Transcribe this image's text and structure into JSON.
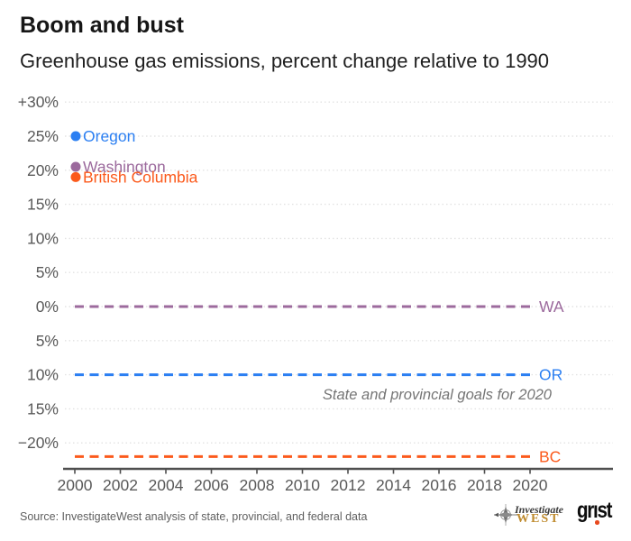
{
  "header": {
    "title": "Boom and bust",
    "subtitle": "Greenhouse gas emissions, percent change relative to 1990"
  },
  "colors": {
    "oregon": "#2b7ff2",
    "washington": "#9c6a9d",
    "british_columbia": "#fb5a1c",
    "grid": "#e3e3e3",
    "axis": "#4f4f4f",
    "tick_text": "#595959",
    "annotation": "#757575",
    "title_text": "#161616",
    "source_text": "#5f5f5f",
    "logo_gold": "#bf8b2e",
    "grist_red": "#e8491e"
  },
  "chart_data": {
    "type": "line",
    "title": "Boom and bust",
    "subtitle": "Greenhouse gas emissions, percent change relative to 1990",
    "unit": "percent change relative to 1990",
    "xlim": [
      2000,
      2020
    ],
    "ylim": [
      -24,
      32
    ],
    "grid": "horizontal dotted every 5%",
    "legend_position": "upper-left inside plot",
    "x_ticks": [
      2000,
      2002,
      2004,
      2006,
      2008,
      2010,
      2012,
      2014,
      2016,
      2018,
      2020
    ],
    "y_ticks": [
      30,
      25,
      20,
      15,
      10,
      5,
      0,
      -5,
      -10,
      -15,
      -20
    ],
    "y_tick_labels": [
      "+30%",
      "25%",
      "20%",
      "15%",
      "10%",
      "5%",
      "0%",
      "5%",
      "10%",
      "15%",
      "−20%"
    ],
    "series": [
      {
        "name": "Oregon",
        "abbr": "OR",
        "color": "#2b7ff2",
        "start_year": 2000,
        "start_value_pct": 25,
        "goal_2020_pct": -10
      },
      {
        "name": "Washington",
        "abbr": "WA",
        "color": "#9c6a9d",
        "start_year": 2000,
        "start_value_pct": 20.5,
        "goal_2020_pct": 0
      },
      {
        "name": "British Columbia",
        "abbr": "BC",
        "color": "#fb5a1c",
        "start_year": 2000,
        "start_value_pct": 19,
        "goal_2020_pct": -22
      }
    ],
    "goal_lines_style": "dashed horizontal, labeled at right with state abbreviation",
    "annotation": "State and provincial goals for 2020"
  },
  "footer": {
    "source": "Source: InvestigateWest analysis of state, provincial, and federal data",
    "investigatewest_logo": {
      "line1": "Investigate",
      "line2": "WEST"
    },
    "grist_logo": "grıst"
  }
}
